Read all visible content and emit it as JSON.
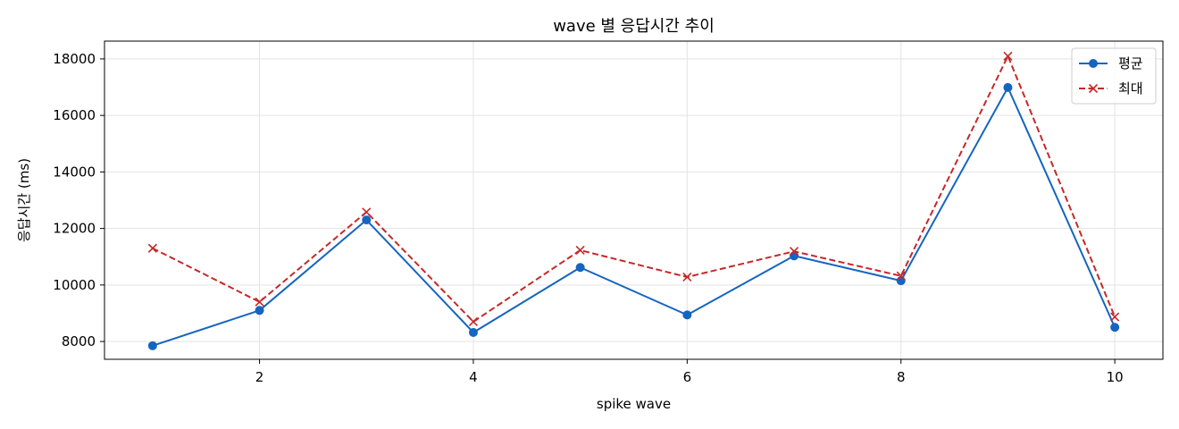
{
  "chart_data": {
    "type": "line",
    "title": "wave 별 응답시간 추이",
    "xlabel": "spike wave",
    "ylabel": "응답시간 (ms)",
    "x": [
      1,
      2,
      3,
      4,
      5,
      6,
      7,
      8,
      9,
      10
    ],
    "xticks": [
      2,
      4,
      6,
      8,
      10
    ],
    "yticks": [
      8000,
      10000,
      12000,
      14000,
      16000,
      18000
    ],
    "xlim": [
      0.55,
      10.45
    ],
    "ylim": [
      7370,
      18630
    ],
    "grid": true,
    "legend_position": "top-right",
    "series": [
      {
        "name": "평균",
        "color": "#1565c0",
        "line_style": "solid",
        "marker": "circle",
        "values": [
          7850,
          9100,
          12300,
          8320,
          10620,
          8940,
          11030,
          10150,
          16990,
          8500
        ]
      },
      {
        "name": "최대",
        "color": "#c62828",
        "line_style": "dashed",
        "marker": "x",
        "values": [
          11300,
          9400,
          12580,
          8700,
          11230,
          10280,
          11190,
          10320,
          18100,
          8870
        ]
      }
    ]
  }
}
